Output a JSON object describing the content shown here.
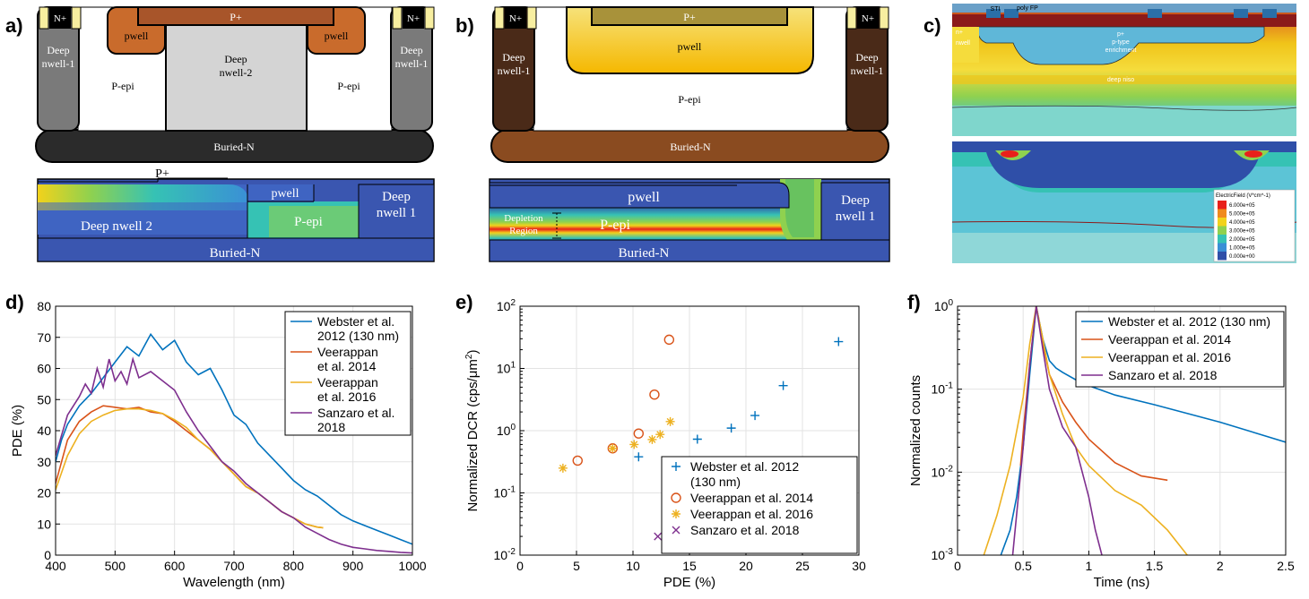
{
  "panels": {
    "a": {
      "letter": "a)",
      "labels": {
        "nplus_left": "N+",
        "nplus_right": "N+",
        "pplus": "P+",
        "pwell_left": "pwell",
        "pwell_right": "pwell",
        "deep_nwell1_left": [
          "Deep",
          "nwell-1"
        ],
        "deep_nwell1_right": [
          "Deep",
          "nwell-1"
        ],
        "pepi_left": "P-epi",
        "pepi_right": "P-epi",
        "deep_nwell2": [
          "Deep",
          "nwell-2"
        ],
        "buried_n": "Buried-N"
      },
      "sim_labels": {
        "pplus": "P+",
        "pwell": "pwell",
        "deep_nwell2": "Deep nwell 2",
        "pepi": "P-epi",
        "deep_nwell1": [
          "Deep",
          "nwell 1"
        ],
        "buried_n": "Buried-N"
      }
    },
    "b": {
      "letter": "b)",
      "labels": {
        "nplus_left": "N+",
        "nplus_right": "N+",
        "pplus": "P+",
        "pwell": "pwell",
        "deep_nwell1_left": [
          "Deep",
          "nwell-1"
        ],
        "deep_nwell1_right": [
          "Deep",
          "nwell-1"
        ],
        "pepi": "P-epi",
        "buried_n": "Buried-N"
      },
      "sim_labels": {
        "pwell": "pwell",
        "depletion": [
          "Depletion",
          "Region"
        ],
        "pepi": "P-epi",
        "deep_nwell1": [
          "Deep",
          "nwell 1"
        ],
        "buried_n": "Buried-N"
      }
    },
    "c": {
      "letter": "c)",
      "labels": {
        "sti": "STI",
        "poly_fp": "poly FP",
        "nplus": "n+",
        "nwell": "nwell",
        "pplus": "p+",
        "ptype": "p-type",
        "enrichment": "enrichment",
        "deep_niso": "deep niso"
      },
      "colorbar": {
        "title": "ElectricField (V*cm^-1)",
        "ticks": [
          "6.000e+05",
          "5.000e+05",
          "4.000e+05",
          "3.000e+05",
          "2.000e+05",
          "1.000e+05",
          "0.000e+00"
        ],
        "colors": [
          "#e8201b",
          "#f08a1c",
          "#f2d21b",
          "#8fd14f",
          "#36c2b4",
          "#3a8fd6",
          "#2f4fa8"
        ]
      }
    },
    "d": {
      "letter": "d)",
      "chart_data": {
        "type": "line",
        "xlabel": "Wavelength (nm)",
        "ylabel": "PDE (%)",
        "xlim": [
          400,
          1000
        ],
        "ylim": [
          0,
          80
        ],
        "xticks": [
          400,
          500,
          600,
          700,
          800,
          900,
          1000
        ],
        "yticks": [
          0,
          10,
          20,
          30,
          40,
          50,
          60,
          70,
          80
        ],
        "grid": true,
        "legend": "top-right",
        "series": [
          {
            "name": "Webster et al. 2012 (130 nm)",
            "color": "#0072bd",
            "x": [
              400,
              410,
              420,
              440,
              460,
              480,
              500,
              520,
              540,
              560,
              580,
              600,
              620,
              640,
              660,
              680,
              700,
              720,
              740,
              760,
              780,
              800,
              820,
              840,
              860,
              880,
              900,
              920,
              940,
              960,
              980,
              1000
            ],
            "y": [
              30,
              37,
              42,
              48,
              52,
              57,
              62,
              67,
              64,
              71,
              66,
              69,
              62,
              58,
              60,
              53,
              45,
              42,
              36,
              32,
              28,
              24,
              21,
              19,
              16,
              13,
              11,
              9.5,
              8,
              6.5,
              5,
              3.5
            ]
          },
          {
            "name": "Veerappan et al. 2014",
            "color": "#d95319",
            "x": [
              400,
              420,
              440,
              460,
              480,
              500,
              520,
              540,
              560,
              580,
              600,
              620,
              640,
              660,
              680,
              700,
              720,
              740,
              760,
              780,
              800,
              820,
              840,
              850
            ],
            "y": [
              23,
              37,
              43,
              46,
              48,
              47.5,
              47,
              47.5,
              46,
              45.5,
              43,
              40,
              37,
              34,
              30,
              26,
              22,
              20,
              17,
              14,
              12,
              10,
              9,
              8.8
            ]
          },
          {
            "name": "Veerappan et al. 2016",
            "color": "#edb120",
            "x": [
              400,
              420,
              440,
              460,
              480,
              500,
              520,
              540,
              560,
              580,
              600,
              620,
              640,
              660,
              680,
              700,
              720,
              740,
              760,
              780,
              800,
              820,
              840,
              850
            ],
            "y": [
              21,
              32,
              39,
              43,
              45,
              46.5,
              47,
              47,
              46.5,
              45.5,
              43.5,
              41,
              37,
              34,
              30,
              26,
              22,
              20,
              17,
              14,
              12,
              10,
              9,
              8.8
            ]
          },
          {
            "name": "Sanzaro et al. 2018",
            "color": "#7e2f8e",
            "x": [
              400,
              420,
              440,
              450,
              460,
              470,
              480,
              490,
              500,
              510,
              520,
              530,
              540,
              560,
              580,
              600,
              620,
              640,
              660,
              680,
              700,
              720,
              740,
              760,
              780,
              800,
              820,
              840,
              860,
              880,
              900,
              920,
              940,
              960,
              980,
              1000
            ],
            "y": [
              32,
              45,
              51,
              55,
              52,
              60,
              54,
              63,
              56,
              59,
              55,
              63,
              57,
              59,
              56,
              53,
              46,
              40,
              35,
              30,
              27,
              23,
              20,
              17,
              14,
              12,
              9,
              7,
              5,
              3.5,
              2.5,
              2,
              1.5,
              1.2,
              0.9,
              0.7
            ]
          }
        ]
      }
    },
    "e": {
      "letter": "e)",
      "chart_data": {
        "type": "scatter",
        "xlabel": "PDE (%)",
        "ylabel": "Normalized DCR (cps/μm²)",
        "xlim": [
          0,
          30
        ],
        "ylim": [
          0.01,
          100
        ],
        "yscale": "log",
        "xticks": [
          0,
          5,
          10,
          15,
          20,
          25,
          30
        ],
        "ytick_labels": [
          "10-2",
          "10-1",
          "100",
          "101",
          "102"
        ],
        "grid": true,
        "legend": "bottom-right",
        "series": [
          {
            "name": "Webster et al. 2012 (130 nm)",
            "marker": "plus",
            "color": "#0072bd",
            "x": [
              10.5,
              15.7,
              18.7,
              20.8,
              23.3,
              28.2
            ],
            "y": [
              0.38,
              0.73,
              1.1,
              1.75,
              5.3,
              27
            ]
          },
          {
            "name": "Veerappan et al. 2014",
            "marker": "circle",
            "color": "#d95319",
            "x": [
              5.1,
              8.2,
              10.5,
              11.9,
              13.2
            ],
            "y": [
              0.33,
              0.52,
              0.9,
              3.8,
              29
            ]
          },
          {
            "name": "Veerappan et al. 2016",
            "marker": "asterisk",
            "color": "#edb120",
            "x": [
              3.8,
              8.2,
              10.1,
              11.7,
              12.4,
              13.3
            ],
            "y": [
              0.25,
              0.52,
              0.6,
              0.72,
              0.87,
              1.4
            ]
          },
          {
            "name": "Sanzaro et al. 2018",
            "marker": "x",
            "color": "#7e2f8e",
            "x": [
              12.2
            ],
            "y": [
              0.02
            ]
          }
        ]
      }
    },
    "f": {
      "letter": "f)",
      "chart_data": {
        "type": "line",
        "xlabel": "Time (ns)",
        "ylabel": "Normalized counts",
        "xlim": [
          0,
          2.5
        ],
        "ylim": [
          0.001,
          1
        ],
        "yscale": "log",
        "xticks": [
          0,
          0.5,
          1,
          1.5,
          2,
          2.5
        ],
        "xtick_labels": [
          "0",
          "0.5",
          "1",
          "1.5",
          "2",
          "2.5"
        ],
        "ytick_labels": [
          "10-3",
          "10-2",
          "10-1",
          "100"
        ],
        "grid": true,
        "legend": "top-right",
        "series": [
          {
            "name": "Webster et al. 2012 (130 nm)",
            "color": "#0072bd",
            "x": [
              0.33,
              0.4,
              0.45,
              0.5,
              0.55,
              0.6,
              0.65,
              0.7,
              0.75,
              0.8,
              0.9,
              1.0,
              1.2,
              1.5,
              2.0,
              2.5
            ],
            "y": [
              0.001,
              0.002,
              0.005,
              0.02,
              0.15,
              1.0,
              0.4,
              0.22,
              0.18,
              0.16,
              0.13,
              0.11,
              0.085,
              0.065,
              0.04,
              0.023
            ]
          },
          {
            "name": "Veerappan et al. 2014",
            "color": "#d95319",
            "x": [
              0.48,
              0.5,
              0.55,
              0.6,
              0.65,
              0.7,
              0.8,
              0.9,
              1.0,
              1.2,
              1.4,
              1.6
            ],
            "y": [
              0.012,
              0.03,
              0.2,
              1.0,
              0.35,
              0.15,
              0.07,
              0.04,
              0.025,
              0.013,
              0.009,
              0.008
            ]
          },
          {
            "name": "Veerappan et al. 2016",
            "color": "#edb120",
            "x": [
              0.2,
              0.3,
              0.4,
              0.5,
              0.55,
              0.6,
              0.65,
              0.7,
              0.8,
              0.9,
              1.0,
              1.2,
              1.4,
              1.6,
              1.75
            ],
            "y": [
              0.001,
              0.003,
              0.012,
              0.08,
              0.35,
              1.0,
              0.4,
              0.15,
              0.05,
              0.02,
              0.012,
              0.006,
              0.004,
              0.002,
              0.001
            ]
          },
          {
            "name": "Sanzaro et al. 2018",
            "color": "#7e2f8e",
            "x": [
              0.42,
              0.5,
              0.55,
              0.6,
              0.65,
              0.7,
              0.8,
              0.9,
              1.0,
              1.05,
              1.1
            ],
            "y": [
              0.001,
              0.02,
              0.2,
              1.0,
              0.3,
              0.1,
              0.035,
              0.02,
              0.005,
              0.002,
              0.001
            ]
          }
        ]
      }
    }
  }
}
